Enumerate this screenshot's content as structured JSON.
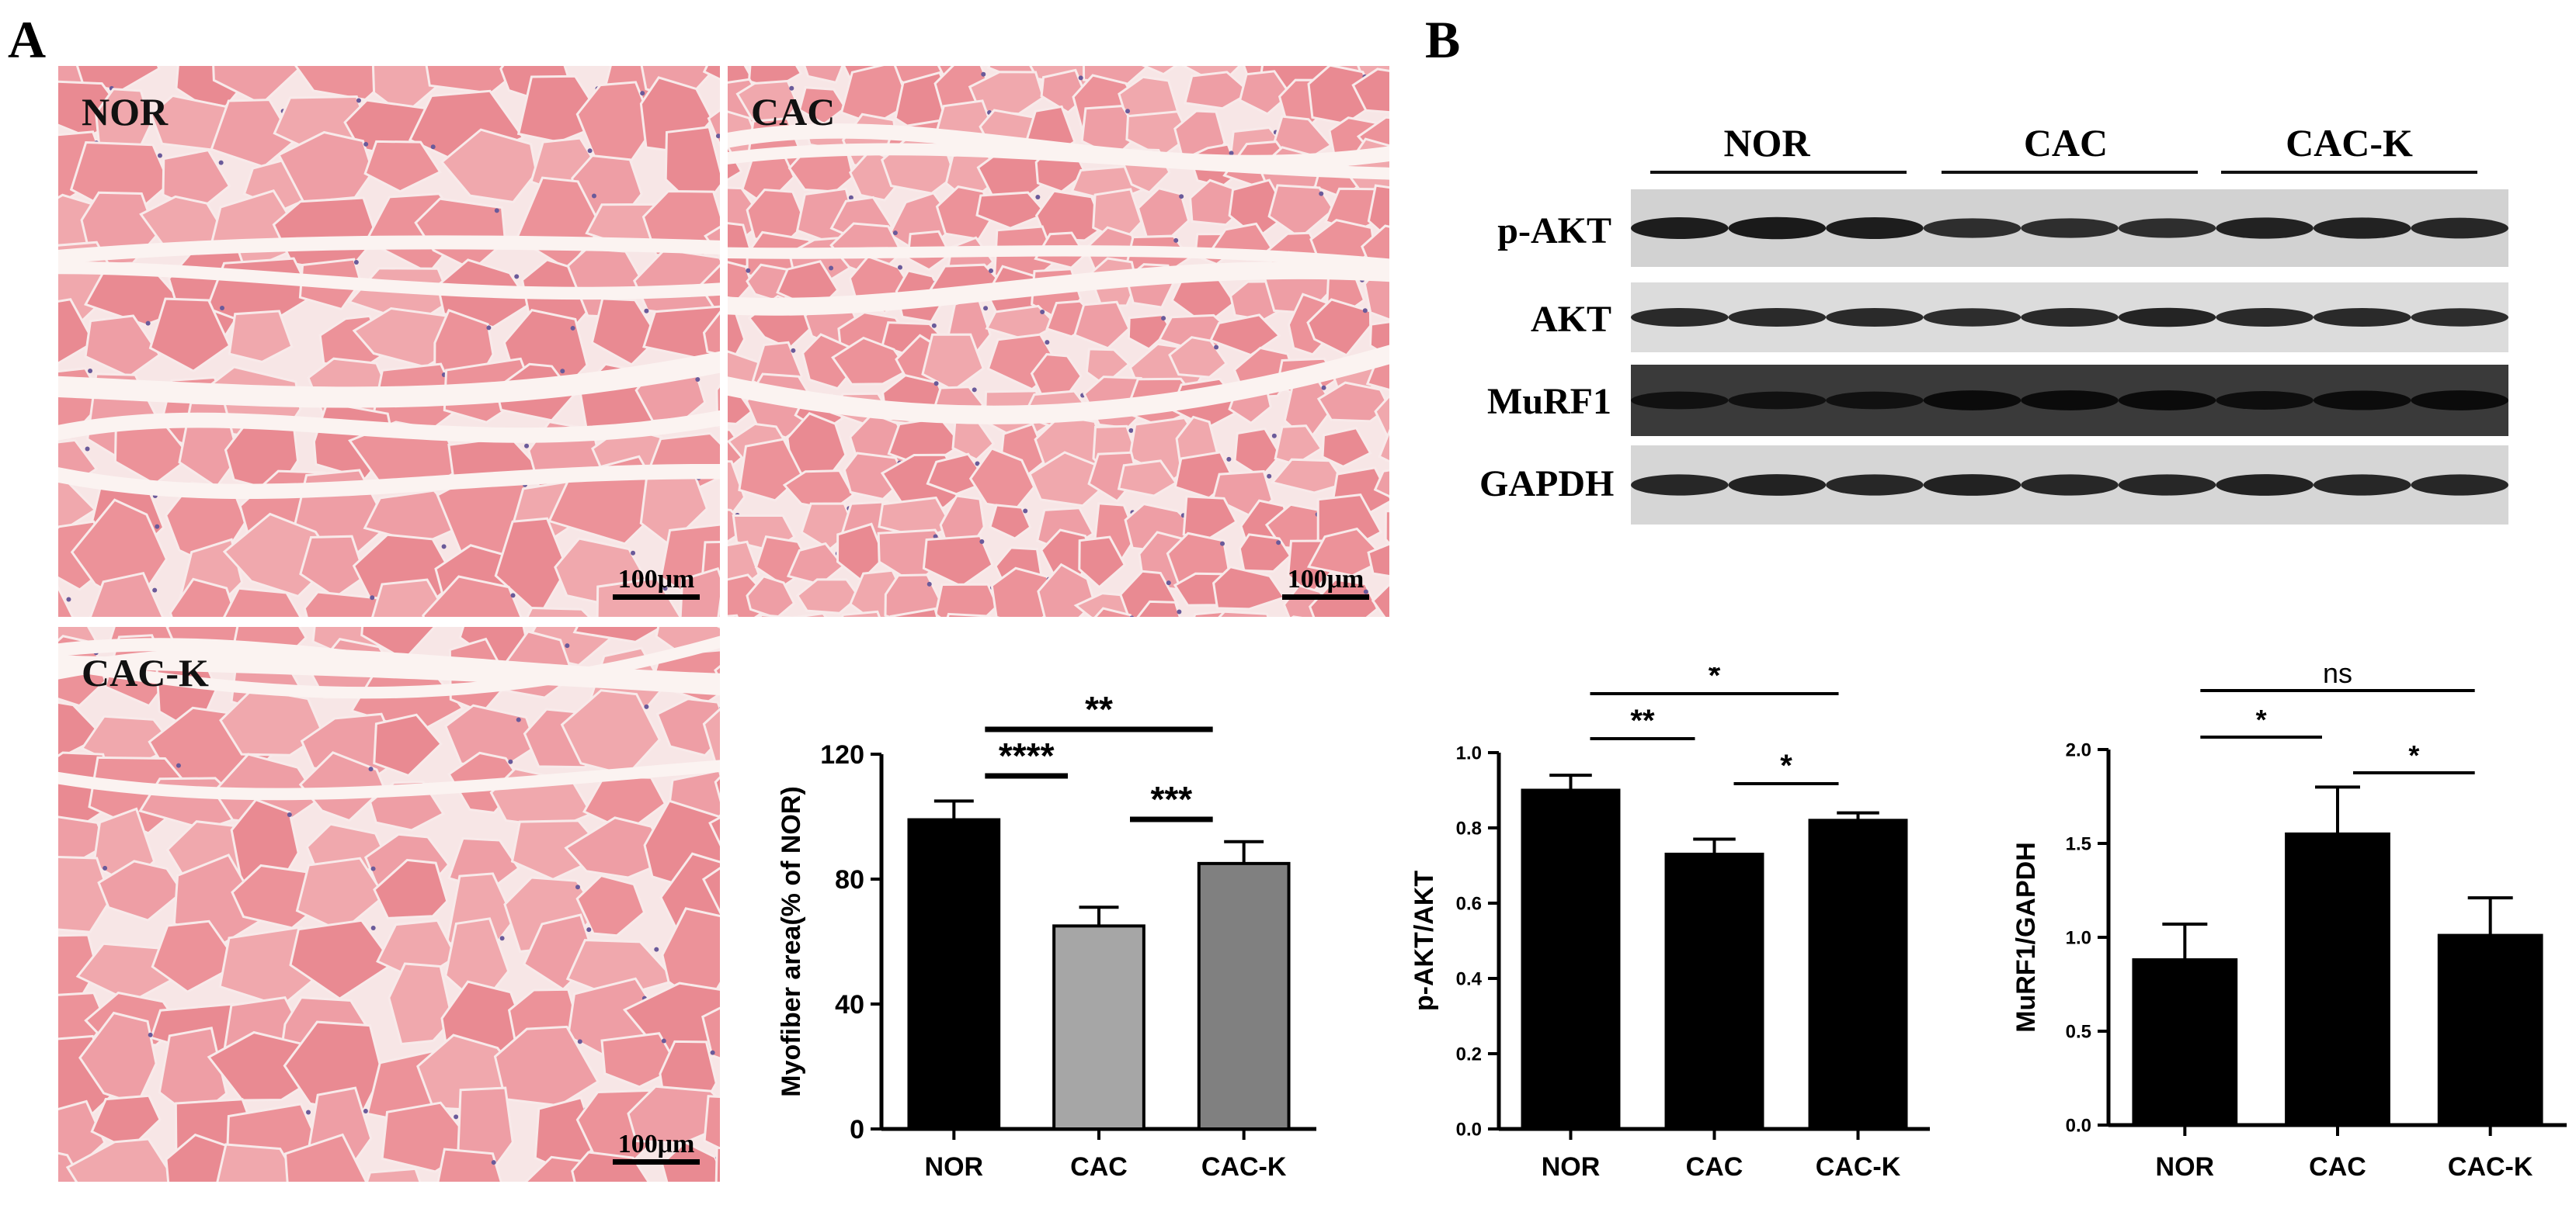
{
  "figure": {
    "panel_a_letter": "A",
    "panel_b_letter": "B",
    "micrographs": [
      {
        "label": "NOR",
        "scale_text": "100μm"
      },
      {
        "label": "CAC",
        "scale_text": "100μm"
      },
      {
        "label": "CAC-K",
        "scale_text": "100μm"
      }
    ],
    "blot": {
      "groups": [
        "NOR",
        "CAC",
        "CAC-K"
      ],
      "rows": [
        {
          "label": "p-AKT",
          "bg": "#d2d2d2",
          "band": "#1a1a1a",
          "intensity": [
            0.95,
            1.0,
            0.95,
            0.75,
            0.75,
            0.75,
            0.9,
            0.9,
            0.85
          ]
        },
        {
          "label": "AKT",
          "bg": "#dcdcdc",
          "band": "#1c1c1c",
          "intensity": [
            0.85,
            0.85,
            0.85,
            0.8,
            0.85,
            0.9,
            0.85,
            0.85,
            0.8
          ]
        },
        {
          "label": "MuRF1",
          "bg": "#3a3a3a",
          "band": "#0a0a0a",
          "intensity": [
            0.7,
            0.7,
            0.7,
            0.95,
            0.95,
            0.95,
            0.8,
            0.9,
            0.95
          ]
        },
        {
          "label": "GAPDH",
          "bg": "#d6d6d6",
          "band": "#1a1a1a",
          "intensity": [
            0.85,
            0.9,
            0.85,
            0.9,
            0.85,
            0.85,
            0.9,
            0.85,
            0.85
          ]
        }
      ]
    }
  },
  "chart_data": [
    {
      "type": "bar",
      "categories": [
        "NOR",
        "CAC",
        "CAC-K"
      ],
      "values": [
        99,
        65,
        85
      ],
      "errors": [
        6,
        6,
        7
      ],
      "bar_colors": [
        "#000000",
        "#a6a6a6",
        "#808080"
      ],
      "ylabel": "Myofiber area(% of NOR)",
      "ylim": [
        0,
        120
      ],
      "yticks": [
        "0",
        "40",
        "80",
        "120"
      ],
      "significance": [
        {
          "from": 0,
          "to": 2,
          "label": "**"
        },
        {
          "from": 0,
          "to": 1,
          "label": "****"
        },
        {
          "from": 1,
          "to": 2,
          "label": "***"
        }
      ]
    },
    {
      "type": "bar",
      "categories": [
        "NOR",
        "CAC",
        "CAC-K"
      ],
      "values": [
        0.9,
        0.73,
        0.82
      ],
      "errors": [
        0.04,
        0.04,
        0.02
      ],
      "bar_colors": [
        "#000000",
        "#000000",
        "#000000"
      ],
      "ylabel": "p-AKT/AKT",
      "ylim": [
        0,
        1.0
      ],
      "yticks": [
        "0.0",
        "0.2",
        "0.4",
        "0.6",
        "0.8",
        "1.0"
      ],
      "significance": [
        {
          "from": 0,
          "to": 2,
          "label": "*"
        },
        {
          "from": 0,
          "to": 1,
          "label": "**"
        },
        {
          "from": 1,
          "to": 2,
          "label": "*"
        }
      ]
    },
    {
      "type": "bar",
      "categories": [
        "NOR",
        "CAC",
        "CAC-K"
      ],
      "values": [
        0.88,
        1.55,
        1.01
      ],
      "errors": [
        0.19,
        0.25,
        0.2
      ],
      "bar_colors": [
        "#000000",
        "#000000",
        "#000000"
      ],
      "ylabel": "MuRF1/GAPDH",
      "ylim": [
        0,
        2.0
      ],
      "yticks": [
        "0.0",
        "0.5",
        "1.0",
        "1.5",
        "2.0"
      ],
      "significance": [
        {
          "from": 0,
          "to": 2,
          "label": "ns"
        },
        {
          "from": 0,
          "to": 1,
          "label": "*"
        },
        {
          "from": 1,
          "to": 2,
          "label": "*"
        }
      ]
    }
  ]
}
